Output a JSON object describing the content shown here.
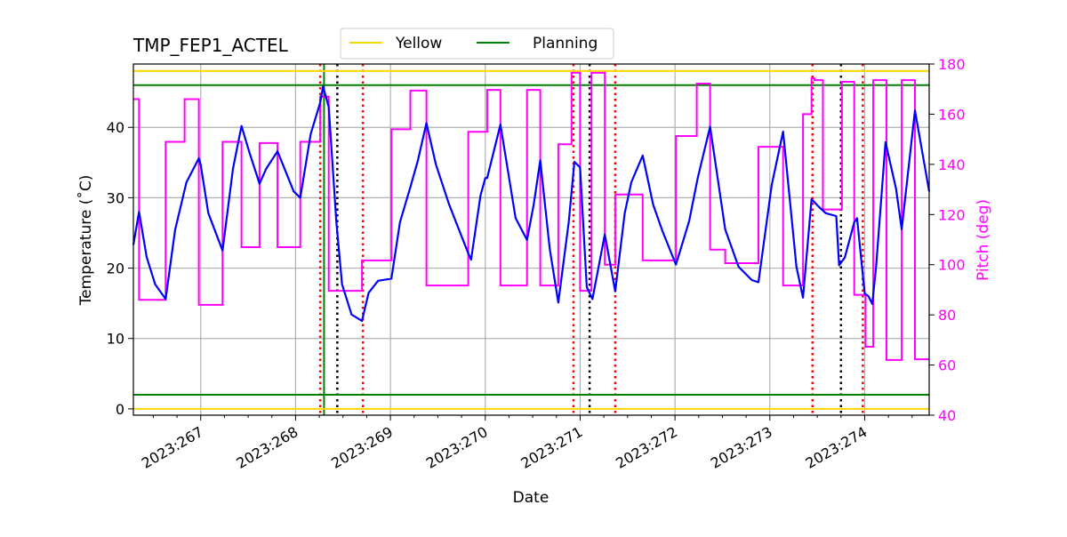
{
  "chart_data": {
    "type": "line",
    "title": "TMP_FEP1_ACTEL",
    "xlabel": "Date",
    "ylabel": "Temperature ($^\\circ$C)",
    "ylabel_display": "Temperature (˚C)",
    "y2label": "Pitch (deg)",
    "xlim": [
      266.29,
      274.68
    ],
    "ylim": [
      -0.9,
      49
    ],
    "y2lim": [
      40,
      180
    ],
    "grid": true,
    "legend_placement": "top-center",
    "x_ticks": [
      267,
      268,
      269,
      270,
      271,
      272,
      273,
      274
    ],
    "x_tick_labels": [
      "2023:267",
      "2023:268",
      "2023:269",
      "2023:270",
      "2023:271",
      "2023:272",
      "2023:273",
      "2023:274"
    ],
    "y_ticks": [
      0,
      10,
      20,
      30,
      40
    ],
    "y_tick_labels": [
      "0",
      "10",
      "20",
      "30",
      "40"
    ],
    "y2_ticks": [
      40,
      60,
      80,
      100,
      120,
      140,
      160,
      180
    ],
    "y2_tick_labels": [
      "40",
      "60",
      "80",
      "100",
      "120",
      "140",
      "160",
      "180"
    ],
    "colors": {
      "temperature": "#0000ff",
      "pitch": "#ff00ff",
      "yellow": "#ffd700",
      "planning": "#008000",
      "red_marker": "#ff0000",
      "black_marker": "#000000",
      "grid": "#b0b0b0"
    },
    "limits": [
      {
        "name": "Yellow",
        "values": [
          0,
          48
        ],
        "color": "#ffd700"
      },
      {
        "name": "Planning",
        "values": [
          2,
          46
        ],
        "color": "#008000"
      }
    ],
    "legend": [
      "Yellow",
      "Planning"
    ],
    "temperature": [
      [
        266.29,
        23.3
      ],
      [
        266.35,
        28.0
      ],
      [
        266.43,
        21.6
      ],
      [
        266.52,
        17.7
      ],
      [
        266.63,
        15.6
      ],
      [
        266.73,
        25.4
      ],
      [
        266.85,
        32.2
      ],
      [
        266.98,
        35.6
      ],
      [
        267.0,
        34.7
      ],
      [
        267.08,
        27.8
      ],
      [
        267.23,
        22.5
      ],
      [
        267.34,
        34.1
      ],
      [
        267.43,
        40.2
      ],
      [
        267.51,
        36.6
      ],
      [
        267.62,
        32.0
      ],
      [
        267.69,
        34.1
      ],
      [
        267.81,
        36.6
      ],
      [
        267.98,
        30.9
      ],
      [
        268.05,
        30.0
      ],
      [
        268.16,
        39.1
      ],
      [
        268.26,
        43.5
      ],
      [
        268.29,
        45.8
      ],
      [
        268.35,
        42.9
      ],
      [
        268.43,
        26.5
      ],
      [
        268.49,
        17.7
      ],
      [
        268.59,
        13.4
      ],
      [
        268.7,
        12.5
      ],
      [
        268.77,
        16.5
      ],
      [
        268.87,
        18.2
      ],
      [
        269.01,
        18.5
      ],
      [
        269.1,
        26.5
      ],
      [
        269.21,
        31.5
      ],
      [
        269.29,
        35.3
      ],
      [
        269.38,
        40.6
      ],
      [
        269.48,
        34.7
      ],
      [
        269.62,
        29.0
      ],
      [
        269.82,
        22.1
      ],
      [
        269.85,
        21.2
      ],
      [
        269.95,
        30.3
      ],
      [
        270.0,
        32.8
      ],
      [
        270.02,
        32.8
      ],
      [
        270.16,
        40.4
      ],
      [
        270.32,
        27.1
      ],
      [
        270.44,
        24.0
      ],
      [
        270.51,
        29.0
      ],
      [
        270.58,
        35.3
      ],
      [
        270.68,
        22.7
      ],
      [
        270.77,
        15.1
      ],
      [
        270.88,
        26.5
      ],
      [
        270.94,
        35.1
      ],
      [
        271.0,
        34.3
      ],
      [
        271.07,
        17.3
      ],
      [
        271.13,
        15.6
      ],
      [
        271.26,
        24.8
      ],
      [
        271.37,
        16.7
      ],
      [
        271.47,
        27.8
      ],
      [
        271.54,
        32.2
      ],
      [
        271.66,
        36.0
      ],
      [
        271.77,
        29.0
      ],
      [
        271.87,
        25.2
      ],
      [
        272.01,
        20.5
      ],
      [
        272.15,
        26.7
      ],
      [
        272.24,
        32.8
      ],
      [
        272.37,
        40.1
      ],
      [
        272.53,
        25.5
      ],
      [
        272.67,
        20.2
      ],
      [
        272.81,
        18.3
      ],
      [
        272.88,
        18.0
      ],
      [
        273.02,
        31.8
      ],
      [
        273.14,
        39.4
      ],
      [
        273.28,
        20.2
      ],
      [
        273.35,
        15.8
      ],
      [
        273.44,
        29.8
      ],
      [
        273.51,
        28.8
      ],
      [
        273.59,
        27.8
      ],
      [
        273.7,
        27.4
      ],
      [
        273.73,
        20.4
      ],
      [
        273.79,
        21.5
      ],
      [
        273.89,
        26.5
      ],
      [
        273.92,
        27.1
      ],
      [
        274.0,
        16.4
      ],
      [
        274.04,
        16.0
      ],
      [
        274.08,
        14.9
      ],
      [
        274.12,
        20.2
      ],
      [
        274.22,
        37.9
      ],
      [
        274.33,
        31.3
      ],
      [
        274.39,
        25.5
      ],
      [
        274.53,
        42.4
      ],
      [
        274.68,
        30.9
      ]
    ],
    "pitch_steps": [
      [
        266.29,
        166
      ],
      [
        266.35,
        86
      ],
      [
        266.63,
        149
      ],
      [
        266.83,
        166
      ],
      [
        266.98,
        84
      ],
      [
        267.23,
        149
      ],
      [
        267.43,
        107
      ],
      [
        267.62,
        148.5
      ],
      [
        267.81,
        107
      ],
      [
        268.05,
        149
      ],
      [
        268.26,
        167
      ],
      [
        268.35,
        89.6
      ],
      [
        268.7,
        101.7
      ],
      [
        269.01,
        154
      ],
      [
        269.21,
        169.4
      ],
      [
        269.38,
        91.7
      ],
      [
        269.82,
        153
      ],
      [
        270.02,
        169.7
      ],
      [
        270.16,
        91.7
      ],
      [
        270.44,
        169.7
      ],
      [
        270.58,
        91.7
      ],
      [
        270.77,
        148
      ],
      [
        270.91,
        176.5
      ],
      [
        271.0,
        89.6
      ],
      [
        271.12,
        176.5
      ],
      [
        271.26,
        100
      ],
      [
        271.37,
        128
      ],
      [
        271.66,
        101.7
      ],
      [
        272.01,
        151.3
      ],
      [
        272.23,
        172.2
      ],
      [
        272.37,
        106
      ],
      [
        272.53,
        100.6
      ],
      [
        272.88,
        147
      ],
      [
        273.14,
        91.7
      ],
      [
        273.35,
        160
      ],
      [
        273.44,
        174.3
      ],
      [
        273.47,
        173.6
      ],
      [
        273.56,
        122
      ],
      [
        273.76,
        172.9
      ],
      [
        273.89,
        88
      ],
      [
        274.01,
        67.3
      ],
      [
        274.09,
        173.6
      ],
      [
        274.23,
        62
      ],
      [
        274.39,
        173.6
      ],
      [
        274.53,
        62.3
      ],
      [
        274.68,
        62.3
      ]
    ],
    "vertical_markers": {
      "red_dotted": [
        268.26,
        268.71,
        270.93,
        271.37,
        273.45,
        273.98
      ],
      "black_dotted": [
        268.44,
        271.1,
        273.75
      ],
      "green_solid": [
        268.3
      ]
    }
  }
}
